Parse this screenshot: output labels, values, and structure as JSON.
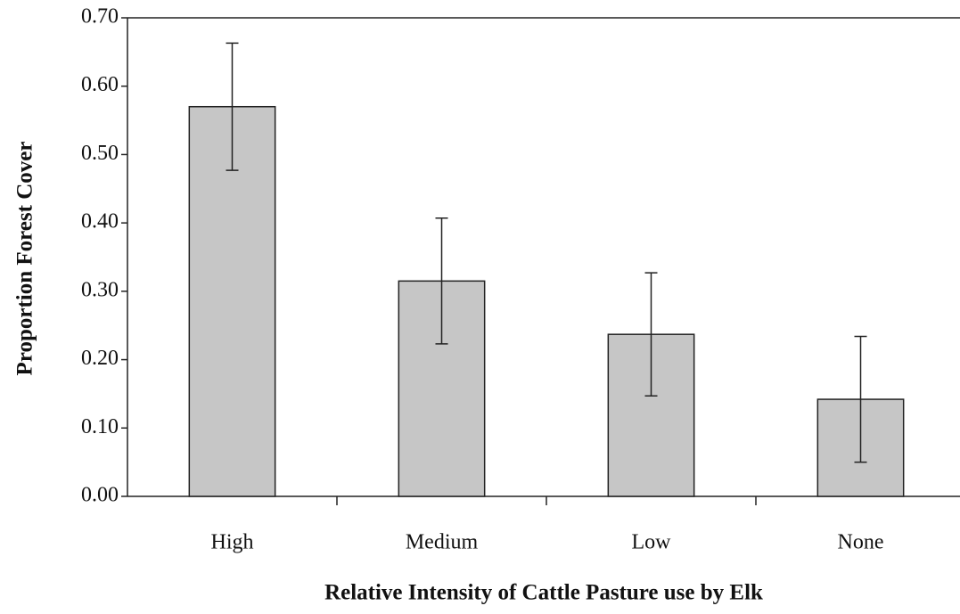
{
  "chart_data": {
    "type": "bar",
    "xlabel": "Relative Intensity of Cattle Pasture use by Elk",
    "ylabel": "Proportion Forest Cover",
    "categories": [
      "High",
      "Medium",
      "Low",
      "None"
    ],
    "values": [
      0.57,
      0.315,
      0.237,
      0.142
    ],
    "errors": [
      0.093,
      0.092,
      0.09,
      0.092
    ],
    "color": "#c6c6c6",
    "ylim": [
      0,
      0.7
    ],
    "yticks": [
      {
        "value": 0,
        "label": "0.00"
      },
      {
        "value": 0.1,
        "label": "0.10"
      },
      {
        "value": 0.2,
        "label": "0.20"
      },
      {
        "value": 0.3,
        "label": "0.30"
      },
      {
        "value": 0.4,
        "label": "0.40"
      },
      {
        "value": 0.5,
        "label": "0.50"
      },
      {
        "value": 0.6,
        "label": "0.60"
      },
      {
        "value": 0.7,
        "label": "0.70"
      }
    ],
    "grid": false
  }
}
